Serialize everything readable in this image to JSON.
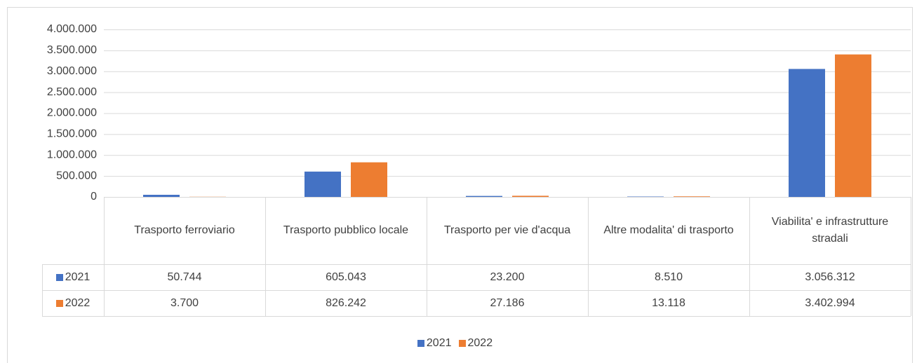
{
  "chart_data": {
    "type": "bar",
    "categories": [
      "Trasporto ferroviario",
      "Trasporto pubblico locale",
      "Trasporto per vie d'acqua",
      "Altre modalita' di trasporto",
      "Viabilita' e infrastrutture stradali"
    ],
    "series": [
      {
        "name": "2021",
        "color": "#4472c4",
        "values": [
          50744,
          605043,
          23200,
          8510,
          3056312
        ],
        "value_labels": [
          "50.744",
          "605.043",
          "23.200",
          "8.510",
          "3.056.312"
        ]
      },
      {
        "name": "2022",
        "color": "#ed7d31",
        "values": [
          3700,
          826242,
          27186,
          13118,
          3402994
        ],
        "value_labels": [
          "3.700",
          "826.242",
          "27.186",
          "13.118",
          "3.402.994"
        ]
      }
    ],
    "ylim": [
      0,
      4000000
    ],
    "yticks": [
      0,
      {
        "value": 500000,
        "label": "500.000"
      },
      {
        "value": 1000000,
        "label": "1.000.000"
      },
      {
        "value": 1500000,
        "label": "1.500.000"
      },
      {
        "value": 2000000,
        "label": "2.000.000"
      },
      {
        "value": 2500000,
        "label": "2.500.000"
      },
      {
        "value": 3000000,
        "label": "3.000.000"
      },
      {
        "value": 3500000,
        "label": "3.500.000"
      },
      {
        "value": 4000000,
        "label": "4.000.000"
      }
    ],
    "grid": true,
    "data_table": true,
    "legend": "bottom"
  }
}
